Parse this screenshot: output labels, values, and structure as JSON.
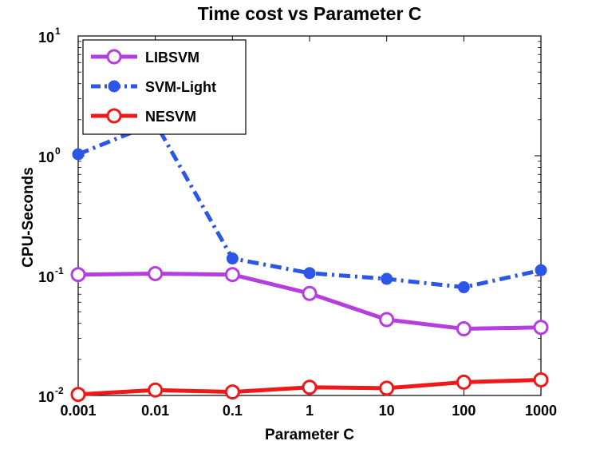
{
  "chart_data": {
    "type": "line",
    "title": "Time cost vs Parameter C",
    "xlabel": "Parameter C",
    "ylabel": "CPU-Seconds",
    "yscale": "log",
    "ylim": [
      0.01,
      10
    ],
    "grid": false,
    "legend_position": "top-left",
    "categories": [
      "0.001",
      "0.01",
      "0.1",
      "1",
      "10",
      "100",
      "1000"
    ],
    "y_ticks": [
      {
        "base": "10",
        "exp": "-2",
        "value": 0.01
      },
      {
        "base": "10",
        "exp": "-1",
        "value": 0.1
      },
      {
        "base": "10",
        "exp": "0",
        "value": 1
      },
      {
        "base": "10",
        "exp": "1",
        "value": 10
      }
    ],
    "series": [
      {
        "name": "LIBSVM",
        "color": "#b53ee0",
        "line_style": "solid",
        "marker": "open-circle",
        "values": [
          0.102,
          0.104,
          0.102,
          0.071,
          0.043,
          0.036,
          0.037
        ]
      },
      {
        "name": "SVM-Light",
        "color": "#2c56e8",
        "line_style": "dash-dot",
        "marker": "filled-circle",
        "values": [
          1.03,
          1.88,
          0.139,
          0.105,
          0.094,
          0.08,
          0.111
        ]
      },
      {
        "name": "NESVM",
        "color": "#f01818",
        "line_style": "solid",
        "marker": "open-circle",
        "values": [
          0.0102,
          0.0111,
          0.0107,
          0.0117,
          0.0115,
          0.0129,
          0.0135
        ]
      }
    ]
  }
}
